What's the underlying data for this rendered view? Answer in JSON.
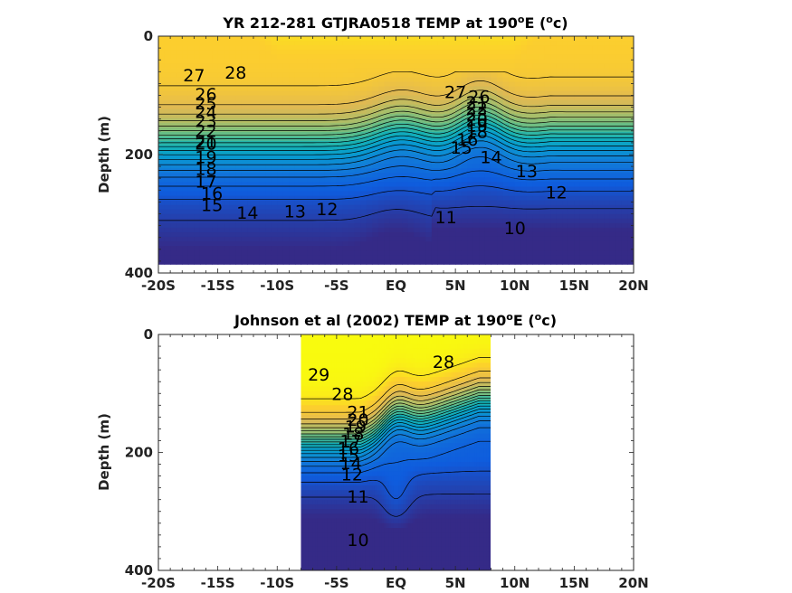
{
  "chart_data": [
    {
      "type": "heatmap",
      "title": "YR 212-281 GTJRA0518 TEMP at 190",
      "title_superscript": "o",
      "title_suffix": "E (",
      "title_unit_superscript": "o",
      "title_unit_suffix": "c)",
      "ylabel": "Depth (m)",
      "xlim": [
        -20,
        20
      ],
      "ylim": [
        400,
        0
      ],
      "x_ticks": [
        -20,
        -15,
        -10,
        -5,
        0,
        5,
        10,
        15,
        20
      ],
      "x_tick_labels": [
        "-20S",
        "-15S",
        "-10S",
        "-5S",
        "EQ",
        "5N",
        "10N",
        "15N",
        "20N"
      ],
      "y_ticks": [
        0,
        200,
        400
      ],
      "y_tick_labels": [
        "0",
        "200",
        "400"
      ],
      "data_extent": {
        "x": [
          -20,
          20
        ],
        "depth": [
          0,
          385
        ]
      },
      "colormap": "parula",
      "contour_levels": [
        10,
        11,
        12,
        13,
        14,
        15,
        16,
        17,
        18,
        19,
        20,
        21,
        22,
        23,
        24,
        25,
        26,
        27,
        28
      ],
      "contour_labels": [
        {
          "text": "28",
          "x": -13.5,
          "y": 63
        },
        {
          "text": "27",
          "x": -17,
          "y": 68
        },
        {
          "text": "26",
          "x": -16,
          "y": 100
        },
        {
          "text": "25",
          "x": -16,
          "y": 115
        },
        {
          "text": "24",
          "x": -16,
          "y": 130
        },
        {
          "text": "23",
          "x": -16,
          "y": 145
        },
        {
          "text": "22",
          "x": -16,
          "y": 162
        },
        {
          "text": "21",
          "x": -16,
          "y": 180
        },
        {
          "text": "20",
          "x": -16,
          "y": 183
        },
        {
          "text": "19",
          "x": -16,
          "y": 206
        },
        {
          "text": "18",
          "x": -16,
          "y": 226
        },
        {
          "text": "17",
          "x": -16,
          "y": 247
        },
        {
          "text": "16",
          "x": -15.5,
          "y": 267
        },
        {
          "text": "15",
          "x": -15.5,
          "y": 287
        },
        {
          "text": "14",
          "x": -12.5,
          "y": 300
        },
        {
          "text": "13",
          "x": -8.5,
          "y": 298
        },
        {
          "text": "12",
          "x": -5.8,
          "y": 294
        },
        {
          "text": "11",
          "x": 4.2,
          "y": 308
        },
        {
          "text": "10",
          "x": 10,
          "y": 326
        },
        {
          "text": "27",
          "x": 5,
          "y": 96
        },
        {
          "text": "26",
          "x": 7,
          "y": 104
        },
        {
          "text": "21",
          "x": 6.8,
          "y": 114
        },
        {
          "text": "22",
          "x": 6.8,
          "y": 124
        },
        {
          "text": "23",
          "x": 6.8,
          "y": 134
        },
        {
          "text": "20",
          "x": 6.8,
          "y": 143
        },
        {
          "text": "19",
          "x": 6.8,
          "y": 153
        },
        {
          "text": "18",
          "x": 6.8,
          "y": 163
        },
        {
          "text": "16",
          "x": 6,
          "y": 176
        },
        {
          "text": "15",
          "x": 5.5,
          "y": 190
        },
        {
          "text": "14",
          "x": 8,
          "y": 206
        },
        {
          "text": "13",
          "x": 11,
          "y": 230
        },
        {
          "text": "12",
          "x": 13.5,
          "y": 266
        }
      ]
    },
    {
      "type": "heatmap",
      "title": "Johnson et al (2002) TEMP at 190",
      "title_superscript": "o",
      "title_suffix": "E (",
      "title_unit_superscript": "o",
      "title_unit_suffix": "c)",
      "ylabel": "Depth (m)",
      "xlim": [
        -20,
        20
      ],
      "ylim": [
        400,
        0
      ],
      "x_ticks": [
        -20,
        -15,
        -10,
        -5,
        0,
        5,
        10,
        15,
        20
      ],
      "x_tick_labels": [
        "-20S",
        "-15S",
        "-10S",
        "-5S",
        "EQ",
        "5N",
        "10N",
        "15N",
        "20N"
      ],
      "y_ticks": [
        0,
        200,
        400
      ],
      "y_tick_labels": [
        "0",
        "200",
        "400"
      ],
      "data_extent": {
        "x": [
          -8,
          8
        ],
        "depth": [
          0,
          400
        ]
      },
      "colormap": "parula",
      "contour_levels": [
        10,
        11,
        12,
        13,
        14,
        15,
        16,
        17,
        18,
        19,
        20,
        21,
        22,
        23,
        24,
        25,
        26,
        27,
        28,
        29
      ],
      "contour_labels": [
        {
          "text": "29",
          "x": -6.5,
          "y": 70
        },
        {
          "text": "28",
          "x": -4.5,
          "y": 103
        },
        {
          "text": "28",
          "x": 4,
          "y": 48
        },
        {
          "text": "21",
          "x": -3.2,
          "y": 133
        },
        {
          "text": "20",
          "x": -3.2,
          "y": 146
        },
        {
          "text": "19",
          "x": -3.4,
          "y": 158
        },
        {
          "text": "18",
          "x": -3.6,
          "y": 170
        },
        {
          "text": "17",
          "x": -3.8,
          "y": 182
        },
        {
          "text": "16",
          "x": -4,
          "y": 195
        },
        {
          "text": "15",
          "x": -4,
          "y": 207
        },
        {
          "text": "14",
          "x": -3.8,
          "y": 220
        },
        {
          "text": "12",
          "x": -3.7,
          "y": 239
        },
        {
          "text": "11",
          "x": -3.2,
          "y": 277
        },
        {
          "text": "10",
          "x": -3.2,
          "y": 350
        }
      ]
    }
  ]
}
